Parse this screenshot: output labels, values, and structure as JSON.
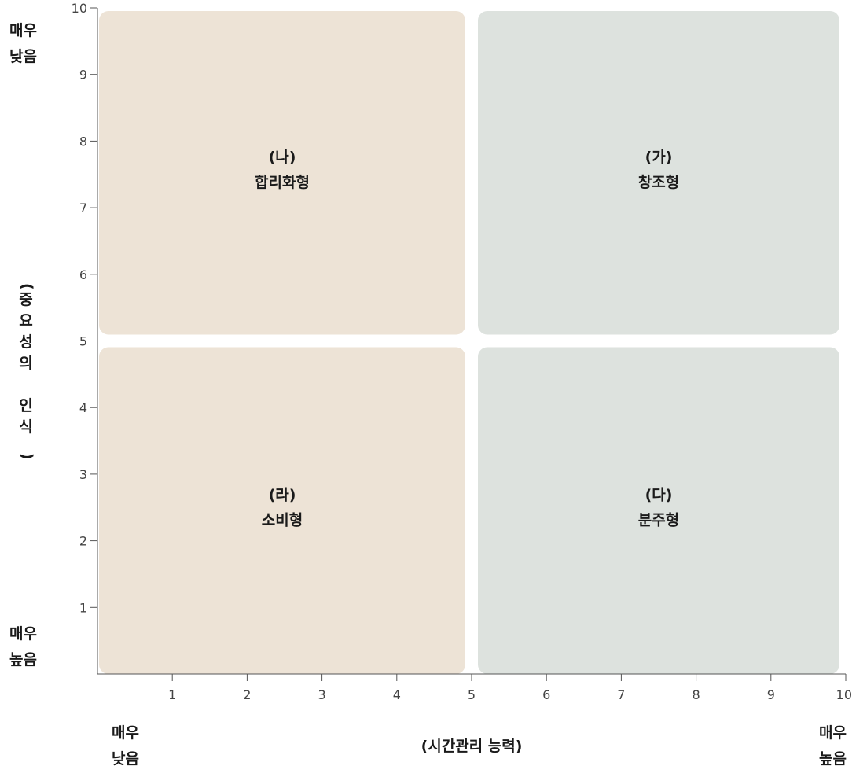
{
  "chart_data": {
    "type": "scatter",
    "title": "",
    "xlabel": "(시간관리 능력)",
    "ylabel": "(중요성의 인식)",
    "xlim": [
      0,
      10
    ],
    "ylim": [
      0,
      10
    ],
    "x_ticks": [
      1,
      2,
      3,
      4,
      5,
      6,
      7,
      8,
      9,
      10
    ],
    "y_ticks": [
      1,
      2,
      3,
      4,
      5,
      6,
      7,
      8,
      9,
      10
    ],
    "x_axis_ends": {
      "low": [
        "매우",
        "낮음"
      ],
      "high": [
        "매우",
        "높음"
      ]
    },
    "y_axis_ends": {
      "top": [
        "매우",
        "낮음"
      ],
      "bottom": [
        "매우",
        "높음"
      ]
    },
    "quadrants": [
      {
        "id": "na",
        "code": "(나)",
        "label": "합리화형",
        "x": [
          0,
          5
        ],
        "y": [
          5,
          10
        ],
        "color": "#ede3d6"
      },
      {
        "id": "ga",
        "code": "(가)",
        "label": "창조형",
        "x": [
          5,
          10
        ],
        "y": [
          5,
          10
        ],
        "color": "#dde2de"
      },
      {
        "id": "ra",
        "code": "(라)",
        "label": "소비형",
        "x": [
          0,
          5
        ],
        "y": [
          0,
          5
        ],
        "color": "#ede3d6"
      },
      {
        "id": "da",
        "code": "(다)",
        "label": "분주형",
        "x": [
          5,
          10
        ],
        "y": [
          0,
          5
        ],
        "color": "#dde2de"
      }
    ],
    "grid": false,
    "axis_color": "#555555"
  }
}
